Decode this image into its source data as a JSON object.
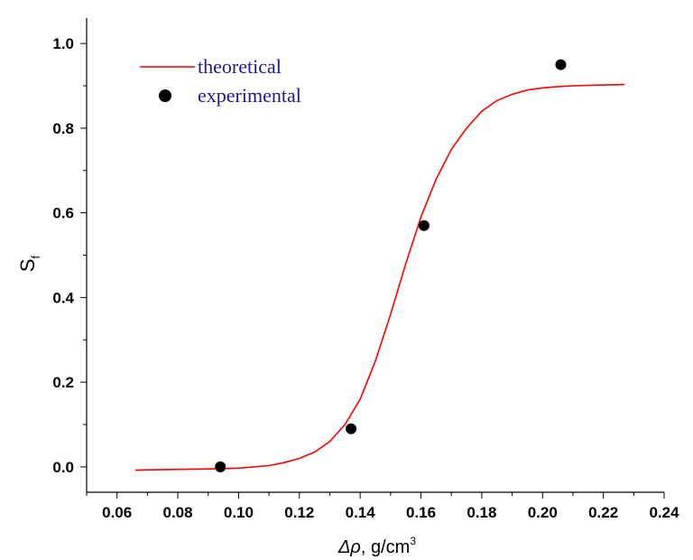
{
  "chart_data": {
    "type": "scatter",
    "xlabel": {
      "symbol": "Δρ",
      "unit": ", g/cm",
      "sup": "3"
    },
    "ylabel": {
      "main": "S",
      "sub": "f"
    },
    "xlim": [
      0.05,
      0.24
    ],
    "ylim": [
      -0.06,
      1.06
    ],
    "x_ticks": [
      "0.06",
      "0.08",
      "0.10",
      "0.12",
      "0.14",
      "0.16",
      "0.18",
      "0.20",
      "0.22",
      "0.24"
    ],
    "y_ticks": [
      "0.0",
      "0.2",
      "0.4",
      "0.6",
      "0.8",
      "1.0"
    ],
    "grid": false,
    "legend_position": "top-left",
    "series": [
      {
        "name": "theoretical",
        "kind": "line",
        "color": "#ff0000",
        "x": [
          0.066,
          0.07,
          0.08,
          0.09,
          0.1,
          0.11,
          0.115,
          0.12,
          0.125,
          0.13,
          0.135,
          0.14,
          0.145,
          0.15,
          0.155,
          0.16,
          0.165,
          0.17,
          0.175,
          0.18,
          0.185,
          0.19,
          0.195,
          0.2,
          0.205,
          0.21,
          0.215,
          0.22,
          0.227
        ],
        "y": [
          -0.008,
          -0.007,
          -0.006,
          -0.005,
          -0.003,
          0.003,
          0.01,
          0.02,
          0.035,
          0.06,
          0.1,
          0.16,
          0.25,
          0.36,
          0.48,
          0.59,
          0.68,
          0.75,
          0.8,
          0.84,
          0.865,
          0.88,
          0.89,
          0.895,
          0.898,
          0.9,
          0.901,
          0.902,
          0.903
        ]
      },
      {
        "name": "experimental",
        "kind": "scatter",
        "color": "#000000",
        "x": [
          0.094,
          0.137,
          0.161,
          0.206
        ],
        "y": [
          0.0,
          0.09,
          0.57,
          0.95
        ]
      }
    ]
  }
}
